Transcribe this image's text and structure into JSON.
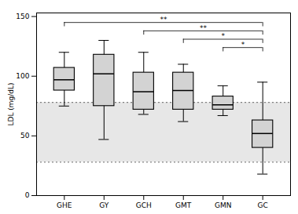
{
  "chart_data": {
    "type": "box",
    "categories": [
      "GHE",
      "GY",
      "GCH",
      "GMT",
      "GMN",
      "GC"
    ],
    "whislo": [
      75,
      47,
      68,
      62,
      67,
      18
    ],
    "q1": [
      88,
      75,
      72,
      72,
      72,
      40
    ],
    "med": [
      97,
      102,
      87,
      88,
      76,
      52
    ],
    "q3": [
      107,
      118,
      103,
      103,
      83,
      63
    ],
    "whishi": [
      120,
      130,
      120,
      110,
      92,
      95
    ],
    "color": "#d3d3d3",
    "ylabel": "LDL (mg/dL)",
    "ylim": [
      0,
      153
    ],
    "yticks": [
      0,
      50,
      100,
      150
    ],
    "shaded_region": [
      28,
      78
    ],
    "dotted_lines": [
      28,
      78
    ],
    "significance": [
      {
        "group1": "GHE",
        "group2": "GC",
        "y": 145,
        "label": "**"
      },
      {
        "group1": "GCH",
        "group2": "GC",
        "y": 138,
        "label": "**"
      },
      {
        "group1": "GMT",
        "group2": "GC",
        "y": 131,
        "label": "*"
      },
      {
        "group1": "GMN",
        "group2": "GC",
        "y": 124,
        "label": "*"
      }
    ]
  }
}
